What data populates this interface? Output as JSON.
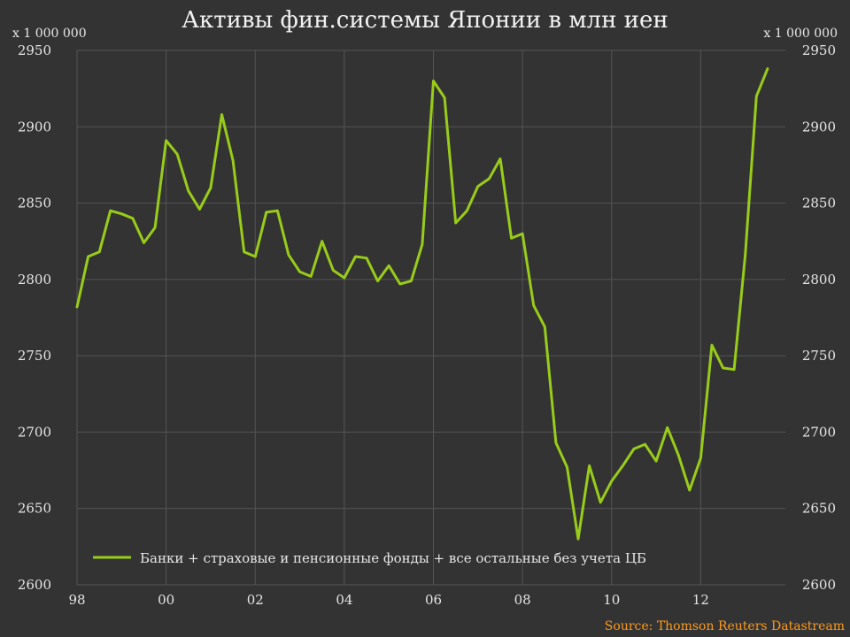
{
  "chart_data": {
    "type": "line",
    "title": "Активы фин.системы Японии в млн иен",
    "unit_left": "x 1 000 000",
    "unit_right": "x 1 000 000",
    "source": "Source: Thomson Reuters Datastream",
    "ylim": [
      2600,
      2950
    ],
    "yticks": [
      "2600",
      "2650",
      "2700",
      "2750",
      "2800",
      "2850",
      "2900",
      "2950"
    ],
    "xlim": [
      1998,
      2013.9
    ],
    "xticks": [
      {
        "x": 1998,
        "label": "98"
      },
      {
        "x": 2000,
        "label": "00"
      },
      {
        "x": 2002,
        "label": "02"
      },
      {
        "x": 2004,
        "label": "04"
      },
      {
        "x": 2006,
        "label": "06"
      },
      {
        "x": 2008,
        "label": "08"
      },
      {
        "x": 2010,
        "label": "10"
      },
      {
        "x": 2012,
        "label": "12"
      }
    ],
    "grid": true,
    "legend_position": "bottom-left",
    "series": [
      {
        "name": "Банки + страховые и пенсионные фонды + все остальные без учета ЦБ",
        "color": "#99cc1a",
        "x": [
          1998.0,
          1998.25,
          1998.5,
          1998.75,
          1999.0,
          1999.25,
          1999.5,
          1999.75,
          2000.0,
          2000.25,
          2000.5,
          2000.75,
          2001.0,
          2001.25,
          2001.5,
          2001.75,
          2002.0,
          2002.25,
          2002.5,
          2002.75,
          2003.0,
          2003.25,
          2003.5,
          2003.75,
          2004.0,
          2004.25,
          2004.5,
          2004.75,
          2005.0,
          2005.25,
          2005.5,
          2005.75,
          2006.0,
          2006.25,
          2006.5,
          2006.75,
          2007.0,
          2007.25,
          2007.5,
          2007.75,
          2008.0,
          2008.25,
          2008.5,
          2008.75,
          2009.0,
          2009.25,
          2009.5,
          2009.75,
          2010.0,
          2010.25,
          2010.5,
          2010.75,
          2011.0,
          2011.25,
          2011.5,
          2011.75,
          2012.0,
          2012.25,
          2012.5,
          2012.75,
          2013.0,
          2013.25,
          2013.5
        ],
        "values": [
          2782,
          2815,
          2818,
          2845,
          2843,
          2840,
          2824,
          2834,
          2891,
          2882,
          2858,
          2846,
          2860,
          2908,
          2878,
          2818,
          2815,
          2844,
          2845,
          2816,
          2805,
          2802,
          2825,
          2806,
          2801,
          2815,
          2814,
          2799,
          2809,
          2797,
          2799,
          2823,
          2930,
          2919,
          2837,
          2845,
          2861,
          2866,
          2879,
          2827,
          2830,
          2783,
          2769,
          2693,
          2677,
          2630,
          2678,
          2654,
          2668,
          2678,
          2689,
          2692,
          2681,
          2703,
          2685,
          2662,
          2683,
          2757,
          2742,
          2741,
          2816,
          2920,
          2938
        ]
      }
    ]
  }
}
